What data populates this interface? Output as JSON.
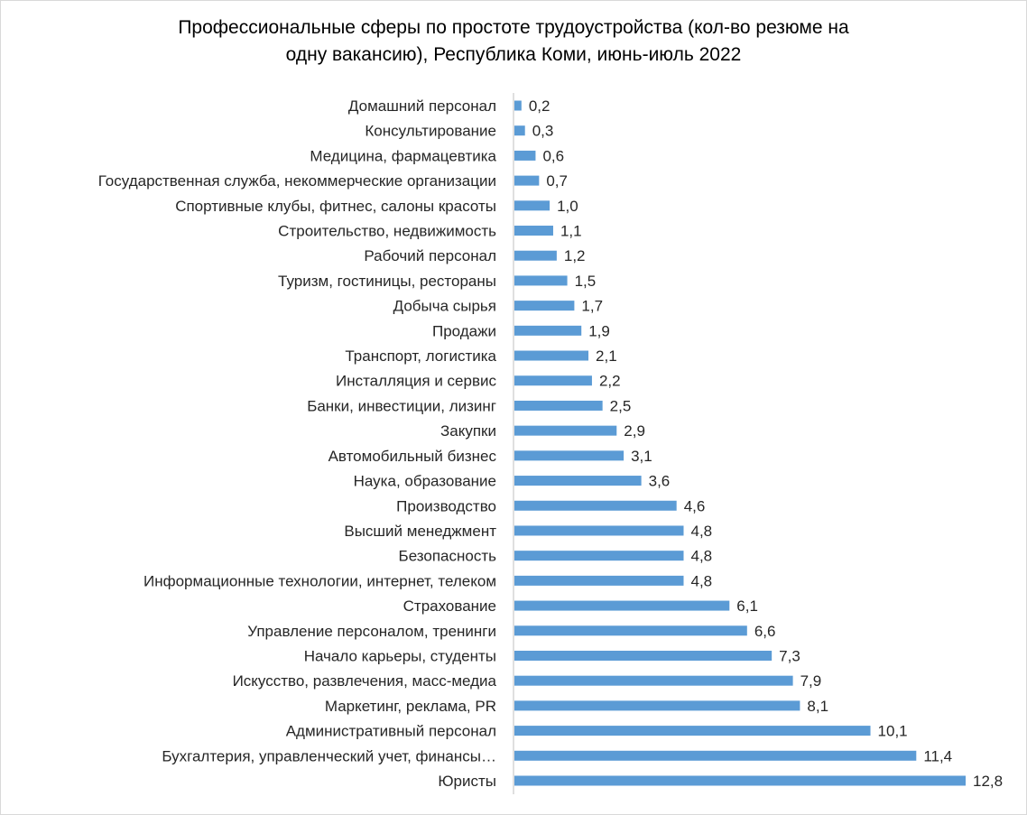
{
  "title_lines": [
    "Профессиональные сферы по простоте трудоустройства (кол-во резюме на",
    "одну вакансию), Республика Коми, июнь-июль 2022"
  ],
  "chart_data": {
    "type": "bar",
    "orientation": "horizontal",
    "title": "Профессиональные сферы по простоте трудоустройства (кол-во резюме на одну вакансию), Республика Коми, июнь-июль 2022",
    "categories": [
      "Домашний персонал",
      "Консультирование",
      "Медицина, фармацевтика",
      "Государственная служба, некоммерческие организации",
      "Спортивные клубы, фитнес, салоны красоты",
      "Строительство, недвижимость",
      "Рабочий персонал",
      "Туризм, гостиницы, рестораны",
      "Добыча сырья",
      "Продажи",
      "Транспорт, логистика",
      "Инсталляция и сервис",
      "Банки, инвестиции, лизинг",
      "Закупки",
      "Автомобильный бизнес",
      "Наука, образование",
      "Производство",
      "Высший менеджмент",
      "Безопасность",
      "Информационные технологии, интернет, телеком",
      "Страхование",
      "Управление персоналом, тренинги",
      "Начало карьеры, студенты",
      "Искусство, развлечения, масс-медиа",
      "Маркетинг, реклама, PR",
      "Административный персонал",
      "Бухгалтерия, управленческий учет, финансы…",
      "Юристы"
    ],
    "values": [
      0.2,
      0.3,
      0.6,
      0.7,
      1.0,
      1.1,
      1.2,
      1.5,
      1.7,
      1.9,
      2.1,
      2.2,
      2.5,
      2.9,
      3.1,
      3.6,
      4.6,
      4.8,
      4.8,
      4.8,
      6.1,
      6.6,
      7.3,
      7.9,
      8.1,
      10.1,
      11.4,
      12.8
    ],
    "data_labels": [
      "0,2",
      "0,3",
      "0,6",
      "0,7",
      "1,0",
      "1,1",
      "1,2",
      "1,5",
      "1,7",
      "1,9",
      "2,1",
      "2,2",
      "2,5",
      "2,9",
      "3,1",
      "3,6",
      "4,6",
      "4,8",
      "4,8",
      "4,8",
      "6,1",
      "6,6",
      "7,3",
      "7,9",
      "8,1",
      "10,1",
      "11,4",
      "12,8"
    ],
    "xlim": [
      0,
      12.8
    ],
    "bar_color": "#5b9bd5",
    "axis_color": "#bfbfbf",
    "grid": false,
    "legend": "none"
  }
}
